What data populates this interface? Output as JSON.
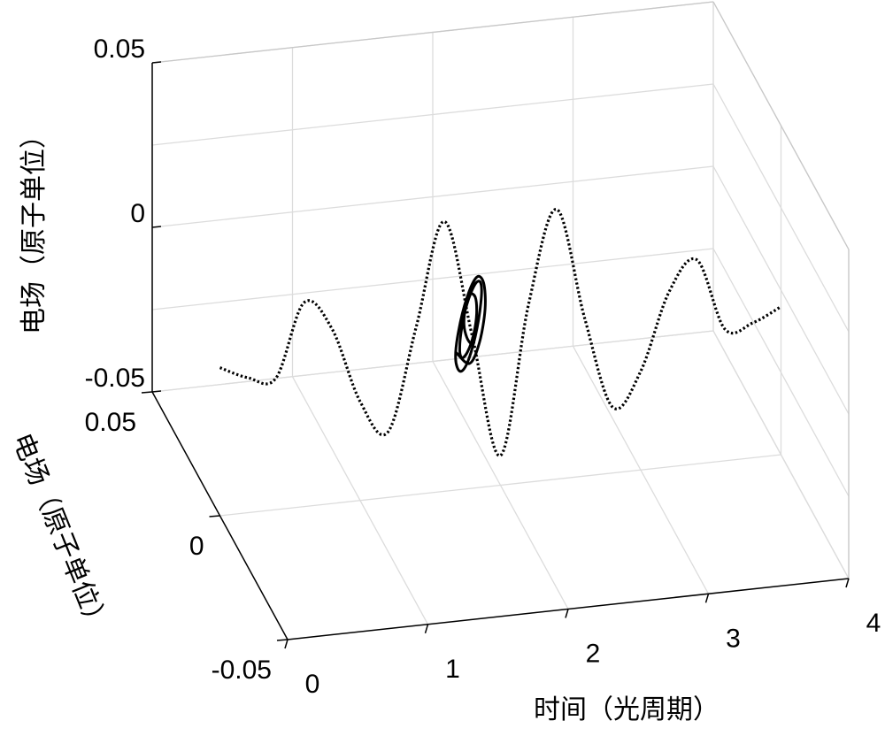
{
  "chart_data": {
    "type": "line",
    "projection": "3d",
    "title": "",
    "xlabel": "时间（光周期）",
    "ylabel": "电场（原子单位）",
    "zlabel": "电场（原子单位）",
    "xlim": [
      0,
      4
    ],
    "ylim": [
      -0.05,
      0.05
    ],
    "zlim": [
      -0.05,
      0.05
    ],
    "x_ticks": [
      "0",
      "1",
      "2",
      "3",
      "4"
    ],
    "y_ticks": [
      "-0.05",
      "0",
      "0.05"
    ],
    "z_ticks": [
      "-0.05",
      "0",
      "0.05"
    ],
    "grid": true,
    "series": [
      {
        "style": "dotted",
        "color": "#000000",
        "x": [
          0.0,
          0.2,
          0.4,
          0.6,
          0.8,
          1.0,
          1.2,
          1.4,
          1.6,
          1.8,
          2.0,
          2.2,
          2.4,
          2.6,
          2.8,
          3.0,
          3.2,
          3.4,
          3.6,
          3.8,
          4.0
        ],
        "y": [
          0.0,
          0.0,
          0.0,
          0.0,
          0.0,
          0.0,
          0.0,
          0.0,
          0.0,
          0.0,
          0.0,
          0.0,
          0.0,
          0.0,
          0.0,
          0.0,
          0.0,
          0.0,
          0.0,
          0.0,
          0.0
        ],
        "z": [
          -0.005,
          -0.009,
          -0.01,
          0.012,
          0.003,
          -0.02,
          -0.03,
          0.001,
          0.032,
          -0.004,
          -0.041,
          0.004,
          0.032,
          -0.002,
          -0.03,
          -0.02,
          0.003,
          0.012,
          -0.01,
          -0.009,
          -0.005
        ]
      },
      {
        "style": "solid",
        "color": "#000000",
        "x": [
          1.68,
          1.78,
          1.85,
          1.89,
          1.88,
          1.83,
          1.76,
          1.7,
          1.68,
          1.71,
          1.76,
          1.82,
          1.86,
          1.86,
          1.82,
          1.76,
          1.72,
          1.71,
          1.73,
          1.77,
          1.81,
          1.83,
          1.82,
          1.78,
          1.75,
          1.74,
          1.76,
          1.79,
          1.8
        ],
        "y": [
          0.0,
          0.0,
          0.0,
          0.0,
          0.0,
          0.0,
          0.0,
          0.0,
          0.0,
          0.0,
          0.0,
          0.0,
          0.0,
          0.0,
          0.0,
          0.0,
          0.0,
          0.0,
          0.0,
          0.0,
          0.0,
          0.0,
          0.0,
          0.0,
          0.0,
          0.0,
          0.0,
          0.0,
          0.0
        ],
        "z": [
          -0.008,
          -0.012,
          -0.006,
          0.004,
          0.012,
          0.014,
          0.008,
          -0.002,
          -0.01,
          -0.014,
          -0.012,
          -0.004,
          0.006,
          0.012,
          0.012,
          0.006,
          -0.002,
          -0.008,
          -0.01,
          -0.008,
          -0.003,
          0.003,
          0.008,
          0.009,
          0.005,
          0.0,
          -0.004,
          -0.006,
          -0.005
        ]
      }
    ]
  }
}
